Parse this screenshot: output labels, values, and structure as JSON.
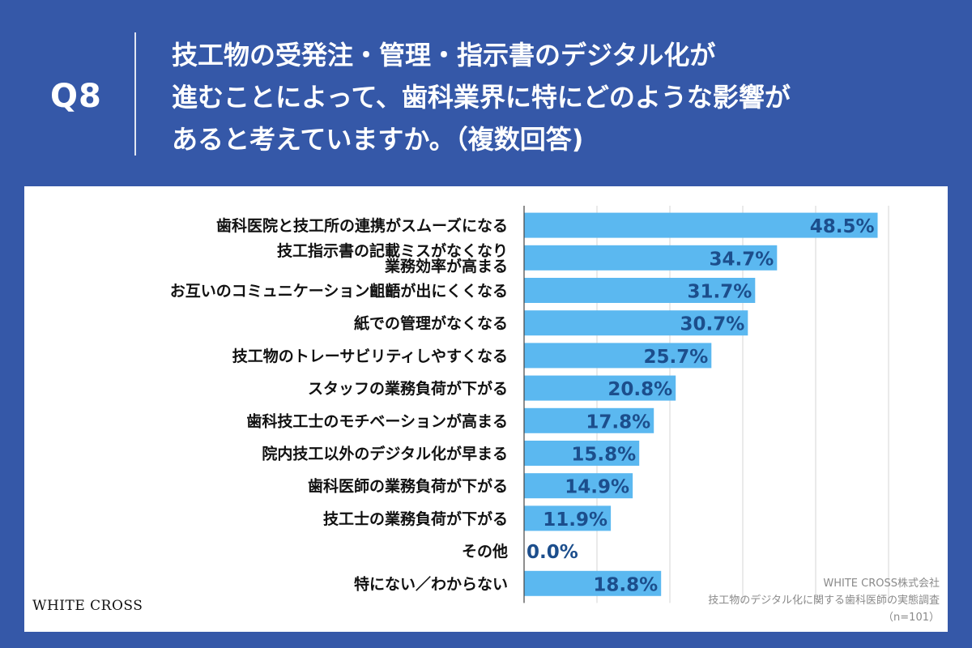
{
  "header": {
    "question_number": "Q8",
    "title_lines": [
      "技工物の受発注・管理・指示書のデジタル化が",
      "進むことによって、歯科業界に特にどのような影響が",
      "あると考えていますか。（複数回答)"
    ]
  },
  "chart_data": {
    "type": "bar",
    "orientation": "horizontal",
    "categories": [
      "歯科医院と技工所の連携がスムーズになる",
      "技工指示書の記載ミスがなくなり\n業務効率が高まる",
      "お互いのコミュニケーション齟齬が出にくくなる",
      "紙での管理がなくなる",
      "技工物のトレーサビリティしやすくなる",
      "スタッフの業務負荷が下がる",
      "歯科技工士のモチベーションが高まる",
      "院内技工以外のデジタル化が早まる",
      "歯科医師の業務負荷が下がる",
      "技工士の業務負荷が下がる",
      "その他",
      "特にない／わからない"
    ],
    "values": [
      48.5,
      34.7,
      31.7,
      30.7,
      25.7,
      20.8,
      17.8,
      15.8,
      14.9,
      11.9,
      0.0,
      18.8
    ],
    "value_labels": [
      "48.5%",
      "34.7%",
      "31.7%",
      "30.7%",
      "25.7%",
      "20.8%",
      "17.8%",
      "15.8%",
      "14.9%",
      "11.9%",
      "0.0%",
      "18.8%"
    ],
    "xlim": [
      0,
      50
    ],
    "grid": true,
    "bar_color": "#5bb8f0",
    "label_color": "#1c4e8c"
  },
  "footer": {
    "brand": "WHITE CROSS",
    "source_lines": [
      "WHITE CROSS株式会社",
      "技工物のデジタル化に関する歯科医師の実態調査",
      "（n=101）"
    ]
  },
  "colors": {
    "background": "#3558a8",
    "panel": "#ffffff"
  }
}
